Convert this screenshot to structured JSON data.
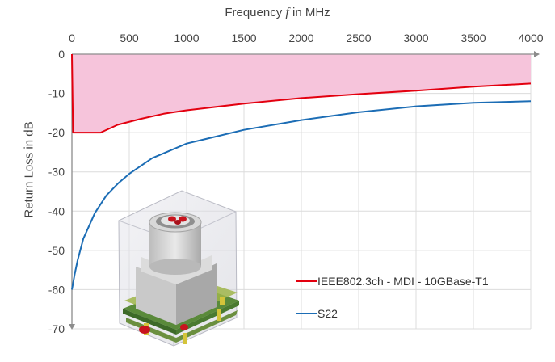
{
  "chart_data": {
    "type": "line",
    "xlabel_prefix": "Frequency ",
    "xlabel_var": "f",
    "xlabel_suffix": " in MHz",
    "ylabel": "Return Loss in dB",
    "xlim": [
      0,
      4000
    ],
    "ylim": [
      -70,
      0
    ],
    "x_ticks": [
      0,
      500,
      1000,
      1500,
      2000,
      2500,
      3000,
      3500,
      4000
    ],
    "y_ticks": [
      0,
      -10,
      -20,
      -30,
      -40,
      -50,
      -60,
      -70
    ],
    "grid": true,
    "x_axis_position": "top",
    "legend_position": "bottom-right",
    "shaded_region": "between 0 dB and the IEEE802.3ch limit line",
    "series": [
      {
        "name": "IEEE802.3ch - MDI - 10GBase-T1",
        "color": "#e3000f",
        "x": [
          0,
          10,
          100,
          200,
          250,
          400,
          600,
          800,
          1000,
          1500,
          2000,
          2500,
          3000,
          3500,
          4000
        ],
        "y": [
          0,
          -20,
          -20,
          -20,
          -20,
          -18,
          -16.5,
          -15.2,
          -14.3,
          -12.6,
          -11.2,
          -10.2,
          -9.3,
          -8.3,
          -7.5
        ]
      },
      {
        "name": "S22",
        "color": "#1c6db5",
        "x": [
          0,
          25,
          50,
          100,
          200,
          300,
          400,
          500,
          700,
          1000,
          1500,
          2000,
          2500,
          3000,
          3500,
          4000
        ],
        "y": [
          -60,
          -56,
          -52.5,
          -47,
          -40.5,
          -36,
          -33,
          -30.5,
          -26.5,
          -22.8,
          -19.3,
          -16.8,
          -14.8,
          -13.3,
          -12.4,
          -12
        ]
      }
    ],
    "colors": {
      "fill": "#f6c4db",
      "grid": "#dcdcdc",
      "axis": "#8c8c8c"
    }
  },
  "illustration": {
    "icon": "connector-3d-render-icon"
  }
}
